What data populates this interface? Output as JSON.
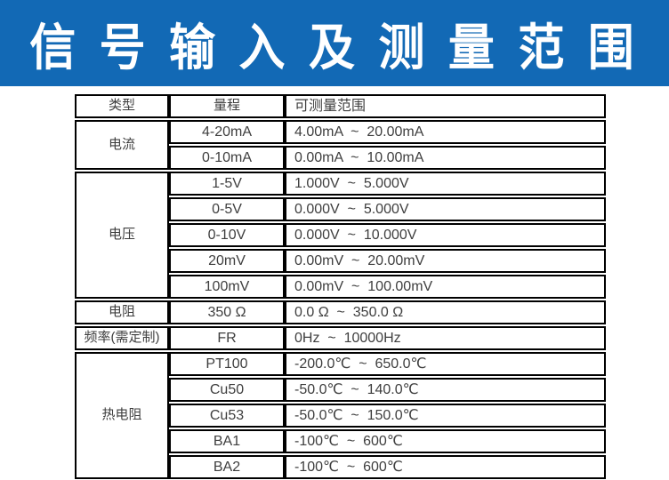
{
  "banner": {
    "title": "信 号 输 入 及 测 量 范 围",
    "bg_color": "#1269b5",
    "text_color": "#ffffff"
  },
  "table": {
    "headers": [
      "类型",
      "量程",
      "可测量范围"
    ],
    "groups": [
      {
        "type": "电流",
        "rows": [
          [
            "4-20mA",
            "4.00mA  ~  20.00mA"
          ],
          [
            "0-10mA",
            "0.00mA  ~  10.00mA"
          ]
        ]
      },
      {
        "type": "电压",
        "rows": [
          [
            "1-5V",
            "1.000V  ~  5.000V"
          ],
          [
            "0-5V",
            "0.000V  ~  5.000V"
          ],
          [
            "0-10V",
            "0.000V  ~  10.000V"
          ],
          [
            "20mV",
            "0.00mV  ~  20.00mV"
          ],
          [
            "100mV",
            "0.00mV  ~  100.00mV"
          ]
        ]
      },
      {
        "type": "电阻",
        "rows": [
          [
            "350 Ω",
            "0.0 Ω  ~  350.0 Ω"
          ]
        ]
      },
      {
        "type": "频率(需定制)",
        "rows": [
          [
            "FR",
            "0Hz  ~  10000Hz"
          ]
        ]
      },
      {
        "type": "热电阻",
        "rows": [
          [
            "PT100",
            "-200.0℃  ~  650.0℃"
          ],
          [
            "Cu50",
            "-50.0℃  ~  140.0℃"
          ],
          [
            "Cu53",
            "-50.0℃  ~  150.0℃"
          ],
          [
            "BA1",
            "-100℃  ~  600℃"
          ],
          [
            "BA2",
            "-100℃  ~  600℃"
          ]
        ]
      }
    ]
  }
}
